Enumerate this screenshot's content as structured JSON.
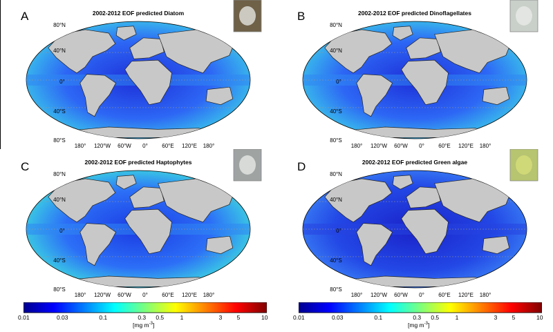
{
  "panels": [
    {
      "letter": "A",
      "title": "2002-2012 EOF predicted Diatom",
      "organism_icon": "diatom-micrograph"
    },
    {
      "letter": "B",
      "title": "2002-2012 EOF predicted Dinoflagellates",
      "organism_icon": "dinoflagellate-micrograph"
    },
    {
      "letter": "C",
      "title": "2002-2012 EOF predicted Haptophytes",
      "organism_icon": "haptophyte-micrograph"
    },
    {
      "letter": "D",
      "title": "2002-2012 EOF predicted Green algae",
      "organism_icon": "green-algae-micrograph"
    }
  ],
  "lat_labels": [
    "80°N",
    "40°N",
    "0°",
    "40°S",
    "80°S"
  ],
  "lon_labels": [
    "180°",
    "120°W",
    "60°W",
    "0°",
    "60°E",
    "120°E",
    "180°"
  ],
  "colorbar": {
    "scale": "log",
    "range": [
      0.01,
      10
    ],
    "colormap": "jet",
    "ticks": [
      "0.01",
      "0.03",
      "0.1",
      "0.3",
      "0.5",
      "1",
      "3",
      "5",
      "10"
    ],
    "tick_values": [
      0.01,
      0.03,
      0.1,
      0.3,
      0.5,
      1,
      3,
      5,
      10
    ],
    "unit_prefix": "[mg m",
    "unit_exp": "-3",
    "unit_suffix": "]"
  },
  "colors": {
    "land": "#c8c8c8",
    "ocean_low": "#1a2fd6",
    "ocean_mid": "#2f7dff",
    "ocean_high": "#3ecfd0",
    "coast_bloom": "#7ddc6a"
  }
}
